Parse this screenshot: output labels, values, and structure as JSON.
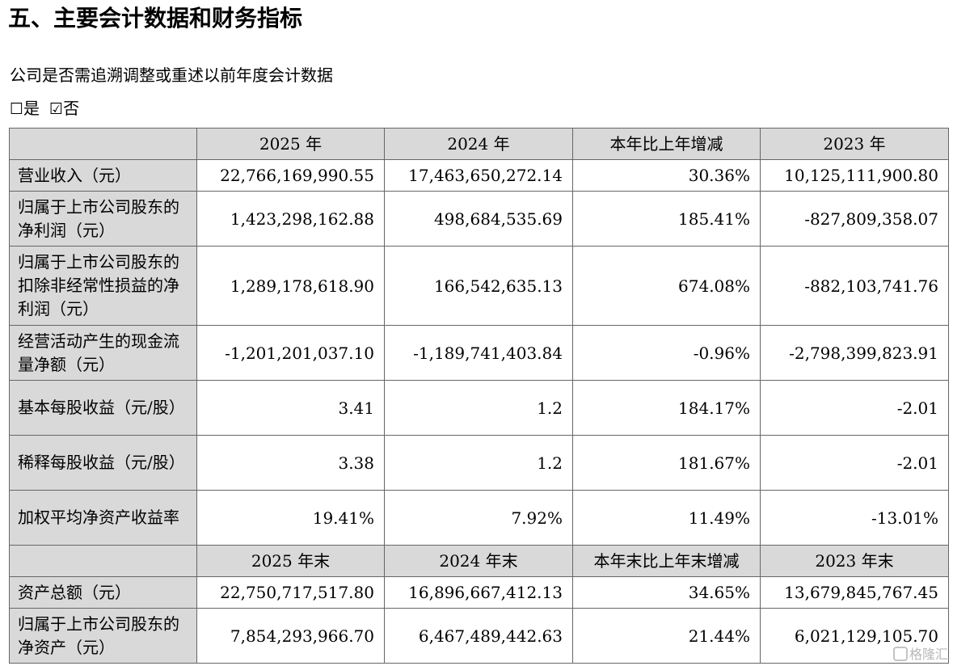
{
  "heading": "五、主要会计数据和财务指标",
  "question": "公司是否需追溯调整或重述以前年度会计数据",
  "choices": [
    {
      "box": "☐",
      "label": "是"
    },
    {
      "box": "☑",
      "label": "否"
    }
  ],
  "table": {
    "header1": [
      "2025 年",
      "2024 年",
      "本年比上年增减",
      "2023 年"
    ],
    "rows1": [
      {
        "label": "营业收入（元）",
        "values": [
          "22,766,169,990.55",
          "17,463,650,272.14",
          "30.36%",
          "10,125,111,900.80"
        ]
      },
      {
        "label": "归属于上市公司股东的净利润（元）",
        "values": [
          "1,423,298,162.88",
          "498,684,535.69",
          "185.41%",
          "-827,809,358.07"
        ]
      },
      {
        "label": "归属于上市公司股东的扣除非经常性损益的净利润（元）",
        "values": [
          "1,289,178,618.90",
          "166,542,635.13",
          "674.08%",
          "-882,103,741.76"
        ]
      },
      {
        "label": "经营活动产生的现金流量净额（元）",
        "values": [
          "-1,201,201,037.10",
          "-1,189,741,403.84",
          "-0.96%",
          "-2,798,399,823.91"
        ]
      },
      {
        "label": "基本每股收益（元/股）",
        "values": [
          "3.41",
          "1.2",
          "184.17%",
          "-2.01"
        ]
      },
      {
        "label": "稀释每股收益（元/股）",
        "values": [
          "3.38",
          "1.2",
          "181.67%",
          "-2.01"
        ]
      },
      {
        "label": "加权平均净资产收益率",
        "values": [
          "19.41%",
          "7.92%",
          "11.49%",
          "-13.01%"
        ]
      }
    ],
    "header2": [
      "2025 年末",
      "2024 年末",
      "本年末比上年末增减",
      "2023 年末"
    ],
    "rows2": [
      {
        "label": "资产总额（元）",
        "values": [
          "22,750,717,517.80",
          "16,896,667,412.13",
          "34.65%",
          "13,679,845,767.45"
        ]
      },
      {
        "label": "归属于上市公司股东的净资产（元）",
        "values": [
          "7,854,293,966.70",
          "6,467,489,442.63",
          "21.44%",
          "6,021,129,105.70"
        ]
      }
    ]
  },
  "watermark": {
    "icon": "gelonghui-logo-icon",
    "text": "格隆汇"
  }
}
